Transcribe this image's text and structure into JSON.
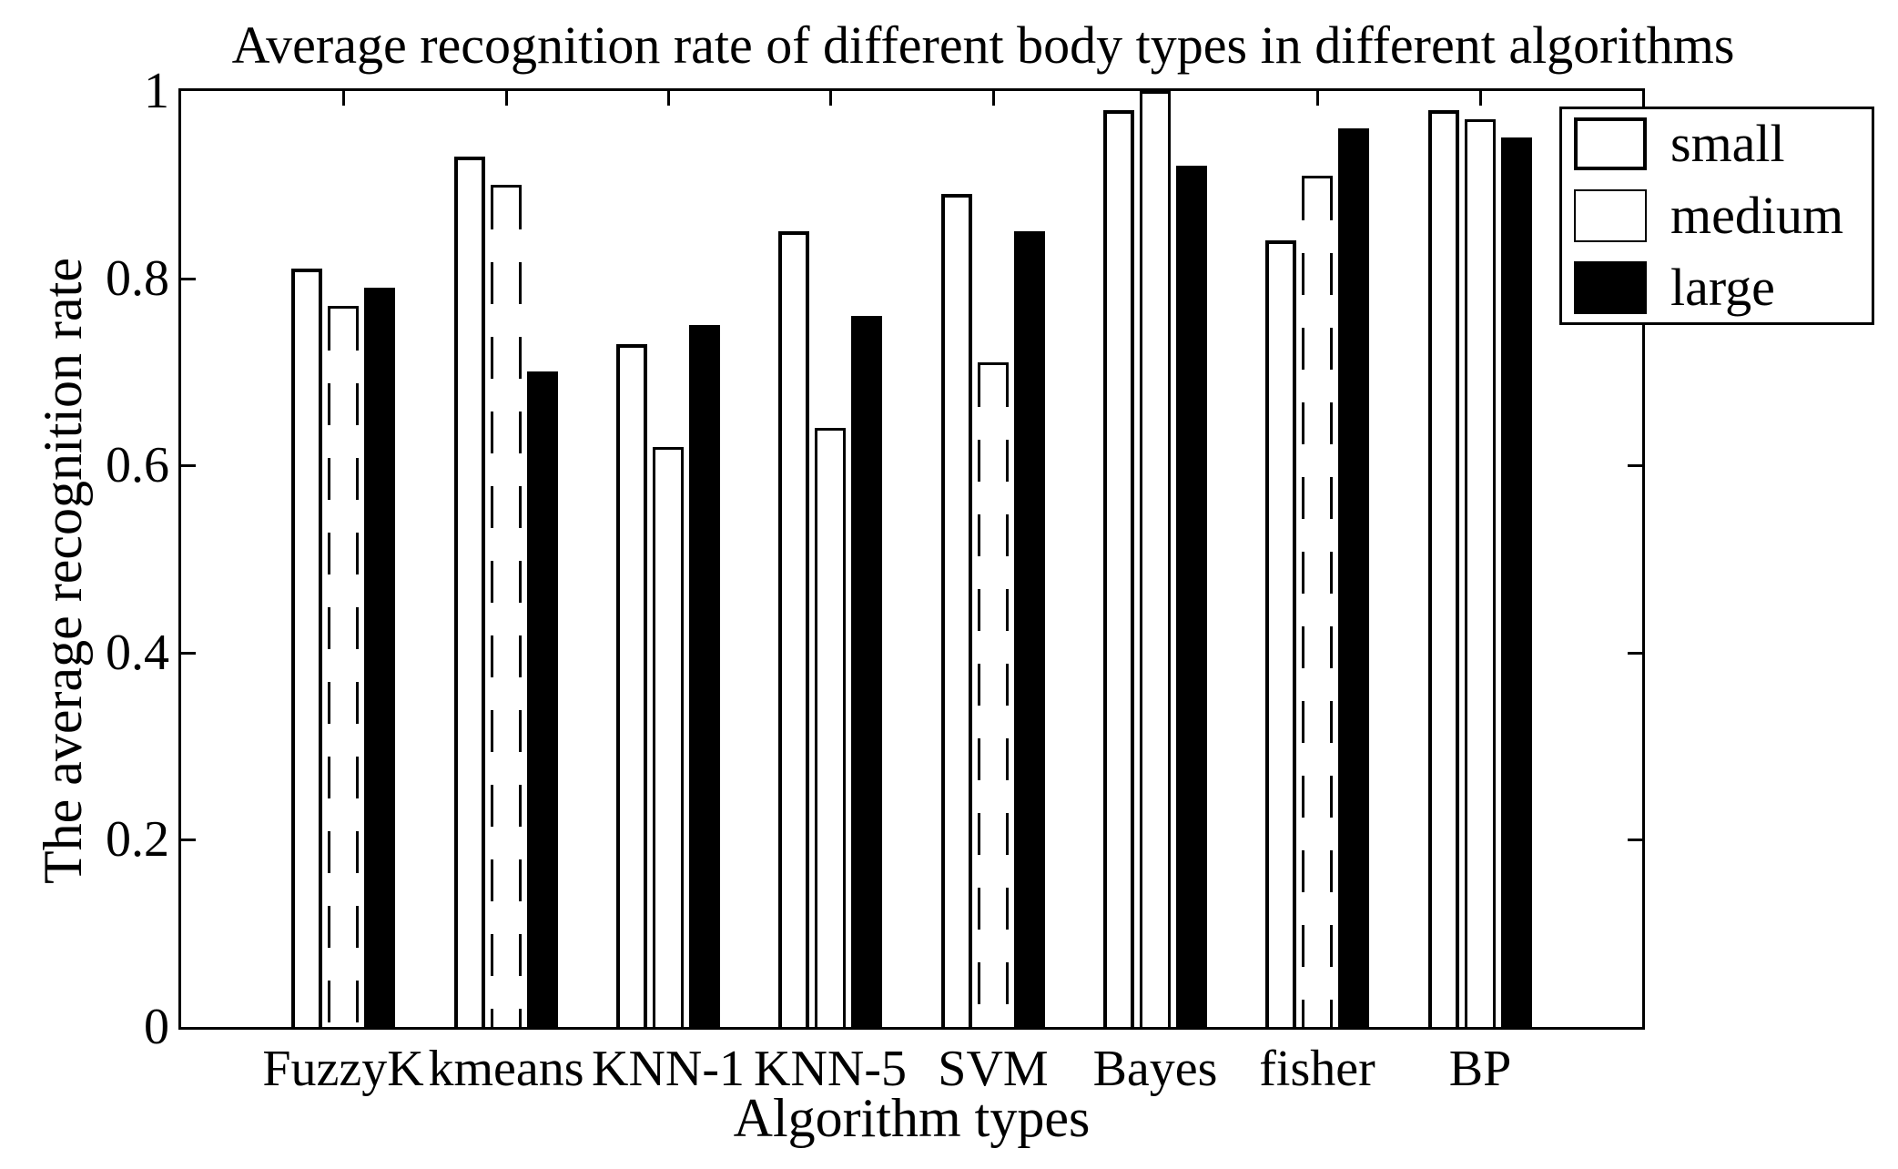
{
  "figure": {
    "title": "Average recognition rate of different body types in different algorithms",
    "x_axis_label": "Algorithm types",
    "y_axis_label": "The average recognition rate"
  },
  "legend": {
    "items": [
      {
        "label": "small",
        "swatch": "white-box-thick-outline"
      },
      {
        "label": "medium",
        "swatch": "white-box-thin-outline"
      },
      {
        "label": "large",
        "swatch": "black-filled-box"
      }
    ]
  },
  "colors": {
    "foreground": "#000000",
    "background": "#ffffff",
    "bar_small_fill": "#ffffff",
    "bar_medium_fill": "#ffffff",
    "bar_large_fill": "#000000"
  },
  "chart_data": {
    "type": "bar",
    "title": "Average recognition rate of different body types in different algorithms",
    "xlabel": "Algorithm types",
    "ylabel": "The average recognition rate",
    "categories": [
      "FuzzyK",
      "kmeans",
      "KNN-1",
      "KNN-5",
      "SVM",
      "Bayes",
      "fisher",
      "BP"
    ],
    "series": [
      {
        "name": "small",
        "fill": "#ffffff",
        "edge": "#000000",
        "values": [
          0.81,
          0.93,
          0.73,
          0.85,
          0.89,
          0.98,
          0.84,
          0.98
        ]
      },
      {
        "name": "medium",
        "fill": "#ffffff",
        "edge": "#000000",
        "values": [
          0.77,
          0.9,
          0.62,
          0.64,
          0.71,
          1.0,
          0.91,
          0.97
        ],
        "broken_edge_groups": [
          0,
          1,
          4,
          6
        ]
      },
      {
        "name": "large",
        "fill": "#000000",
        "edge": "#000000",
        "values": [
          0.79,
          0.7,
          0.75,
          0.76,
          0.85,
          0.92,
          0.96,
          0.95
        ]
      }
    ],
    "ylim": [
      0,
      1
    ],
    "yticks": [
      {
        "label": "0",
        "value": 0
      },
      {
        "label": "0.2",
        "value": 0.2
      },
      {
        "label": "0.4",
        "value": 0.4
      },
      {
        "label": "0.6",
        "value": 0.6
      },
      {
        "label": "0.8",
        "value": 0.8
      },
      {
        "label": "1",
        "value": 1
      }
    ],
    "grid": false,
    "legend_position": "upper-right-outside"
  }
}
